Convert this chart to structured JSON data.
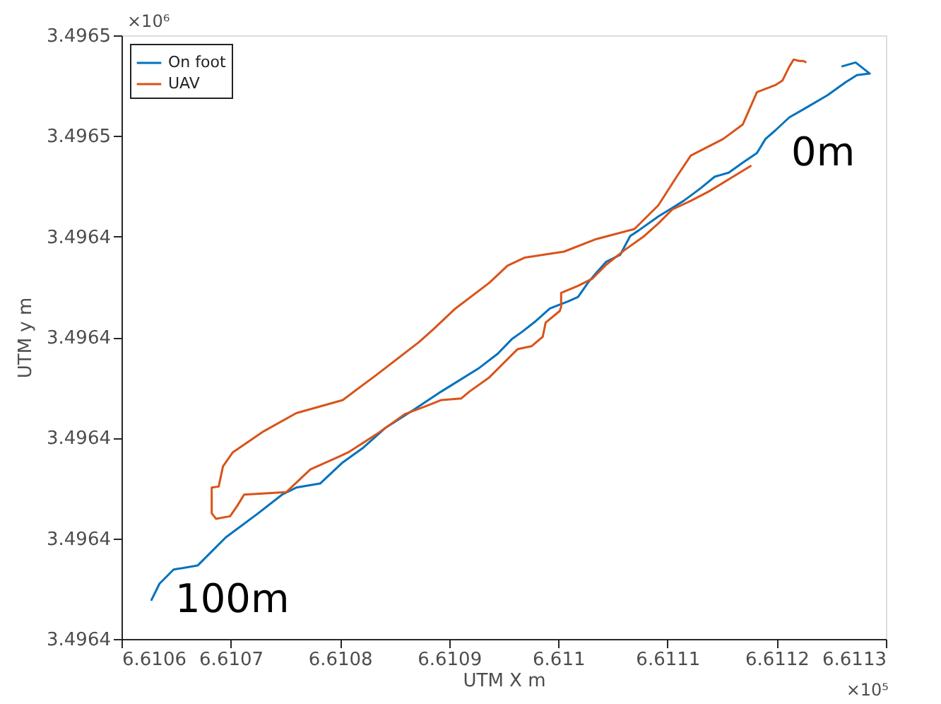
{
  "chart_data": {
    "type": "line",
    "xlabel": "UTM X  m",
    "ylabel": "UTM y  m",
    "xlim": [
      6.6106,
      6.6113
    ],
    "xticks": [
      6.6106,
      6.6107,
      6.6108,
      6.6109,
      6.611,
      6.6111,
      6.6112,
      6.6113
    ],
    "ylim": [
      3.49636,
      3.49648
    ],
    "yticks": [
      {
        "value": 3.49636,
        "label": "3.4964"
      },
      {
        "value": 3.49638,
        "label": "3.4964"
      },
      {
        "value": 3.4964,
        "label": "3.4964"
      },
      {
        "value": 3.49642,
        "label": "3.4964"
      },
      {
        "value": 3.49644,
        "label": "3.4964"
      },
      {
        "value": 3.49646,
        "label": "3.4965"
      },
      {
        "value": 3.49648,
        "label": "3.4965"
      }
    ],
    "grid": false,
    "legend": "top left",
    "marker": "none",
    "line_style": "solid",
    "annotations": [
      "0m",
      "100m",
      "×10⁶",
      "×10⁵"
    ],
    "series": [
      {
        "name": "On foot",
        "color": "#0072bd",
        "x": [
          6.6112594,
          6.6112723,
          6.6112852,
          6.6112735,
          6.6112632,
          6.6112465,
          6.6112245,
          6.6112116,
          6.6111987,
          6.6111897,
          6.6111819,
          6.611169,
          6.6111561,
          6.6111432,
          6.6111303,
          6.6111148,
          6.6111045,
          6.6110916,
          6.6110735,
          6.6110658,
          6.6110568,
          6.6110439,
          6.6110348,
          6.6110271,
          6.6110181,
          6.611009,
          6.6109923,
          6.6109794,
          6.6109665,
          6.6109574,
          6.6109445,
          6.6109277,
          6.6108929,
          6.6108671,
          6.6108413,
          6.6108206,
          6.6108026,
          6.6107819,
          6.61076,
          6.6107471,
          6.6107252,
          6.6106955,
          6.6106697,
          6.6106477,
          6.6106348,
          6.6106271
        ],
        "values": [
          3.4964738,
          3.4964746,
          3.4964724,
          3.4964721,
          3.4964707,
          3.4964681,
          3.4964653,
          3.4964637,
          3.4964611,
          3.4964594,
          3.4964566,
          3.4964547,
          3.4964527,
          3.4964519,
          3.4964496,
          3.4964471,
          3.4964457,
          3.496444,
          3.4964412,
          3.4964401,
          3.4964364,
          3.496435,
          3.4964328,
          3.4964308,
          3.496428,
          3.4964271,
          3.4964257,
          3.4964232,
          3.496421,
          3.4964196,
          3.4964167,
          3.4964139,
          3.4964092,
          3.4964055,
          3.4964019,
          3.4963979,
          3.4963951,
          3.4963909,
          3.4963901,
          3.4963887,
          3.496385,
          3.4963802,
          3.4963746,
          3.4963738,
          3.496371,
          3.4963676
        ]
      },
      {
        "name": "UAV",
        "color": "#d95319",
        "x": [
          6.6111768,
          6.61116,
          6.6111381,
          6.6111213,
          6.6111045,
          6.6110916,
          6.6110787,
          6.6110606,
          6.6110439,
          6.611031,
          6.6110181,
          6.6110026,
          6.6110026,
          6.6110013,
          6.6109884,
          6.6109858,
          6.6109755,
          6.6109626,
          6.6109368,
          6.6109187,
          6.610911,
          6.6108929,
          6.61088,
          6.6108594,
          6.6108335,
          6.6108077,
          6.6107987,
          6.6107729,
          6.610751,
          6.6107123,
          6.6107058,
          6.6106994,
          6.6106865,
          6.6106826,
          6.6106826,
          6.610689,
          6.6106929,
          6.6107019,
          6.6107303,
          6.61076,
          6.6108026,
          6.6108335,
          6.6108723,
          6.6108852,
          6.6109058,
          6.6109368,
          6.6109535,
          6.610969,
          6.6110052,
          6.6110348,
          6.6110697,
          6.6110916,
          6.6111084,
          6.6111213,
          6.611151,
          6.611169,
          6.6111819,
          6.6111987,
          6.6112052,
          6.6112116,
          6.6112155,
          6.6112206,
          6.6112245,
          6.6112271
        ],
        "values": [
          3.4964541,
          3.4964519,
          3.496449,
          3.4964471,
          3.4964454,
          3.4964426,
          3.4964401,
          3.4964373,
          3.4964344,
          3.4964316,
          3.4964302,
          3.4964288,
          3.496426,
          3.4964252,
          3.4964229,
          3.4964201,
          3.4964182,
          3.4964176,
          3.496412,
          3.4964092,
          3.4964078,
          3.4964075,
          3.4964064,
          3.4964047,
          3.4964007,
          3.4963971,
          3.4963962,
          3.4963937,
          3.4963892,
          3.4963887,
          3.4963864,
          3.4963844,
          3.4963839,
          3.496385,
          3.4963901,
          3.4963903,
          3.4963943,
          3.4963971,
          3.4964013,
          3.4964049,
          3.4964075,
          3.4964125,
          3.496419,
          3.4964215,
          3.4964257,
          3.4964308,
          3.4964342,
          3.4964358,
          3.496437,
          3.4964395,
          3.4964415,
          3.4964462,
          3.4964519,
          3.4964561,
          3.4964594,
          3.4964623,
          3.4964687,
          3.4964701,
          3.496471,
          3.4964738,
          3.4964752,
          3.4964749,
          3.4964749,
          3.4964746
        ]
      }
    ]
  }
}
